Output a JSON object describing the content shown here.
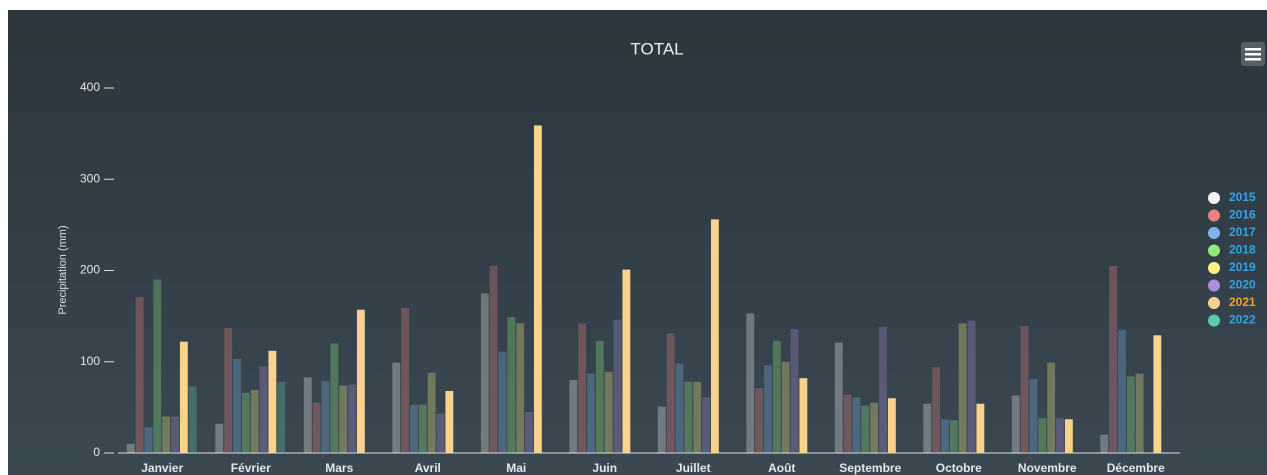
{
  "chart_data": {
    "type": "bar",
    "title": "TOTAL",
    "y_label": "Precipitation (mm)",
    "categories": [
      "Janvier",
      "Février",
      "Mars",
      "Avril",
      "Mai",
      "Juin",
      "Juillet",
      "Août",
      "Septembre",
      "Octobre",
      "Novembre",
      "Décembre"
    ],
    "ylim": [
      0,
      400
    ],
    "yticks": [
      0,
      100,
      200,
      300,
      400
    ],
    "series": [
      {
        "name": "2015",
        "color": "#f4f4f4",
        "values": [
          10,
          32,
          83,
          99,
          175,
          80,
          51,
          153,
          121,
          54,
          63,
          20
        ]
      },
      {
        "name": "2016",
        "color": "#f08080",
        "values": [
          171,
          137,
          55,
          159,
          205,
          142,
          131,
          71,
          64,
          94,
          139,
          205
        ]
      },
      {
        "name": "2017",
        "color": "#7cb5ec",
        "values": [
          28,
          103,
          79,
          53,
          111,
          87,
          98,
          96,
          61,
          37,
          81,
          135
        ]
      },
      {
        "name": "2018",
        "color": "#90ed7d",
        "values": [
          190,
          66,
          120,
          53,
          149,
          123,
          78,
          123,
          52,
          36,
          38,
          84
        ]
      },
      {
        "name": "2019",
        "color": "#f7f383",
        "values": [
          40,
          69,
          74,
          88,
          142,
          89,
          78,
          100,
          55,
          142,
          99,
          87
        ]
      },
      {
        "name": "2020",
        "color": "#a88fd8",
        "values": [
          40,
          95,
          75,
          43,
          45,
          146,
          61,
          136,
          138,
          145,
          38,
          null
        ]
      },
      {
        "name": "2021",
        "color": "#f9d28e",
        "values": [
          122,
          112,
          157,
          68,
          359,
          201,
          256,
          82,
          60,
          54,
          37,
          129
        ]
      },
      {
        "name": "2022",
        "color": "#5fc9b0",
        "values": [
          73,
          78,
          null,
          null,
          null,
          null,
          null,
          null,
          null,
          null,
          null,
          null
        ]
      }
    ]
  }
}
